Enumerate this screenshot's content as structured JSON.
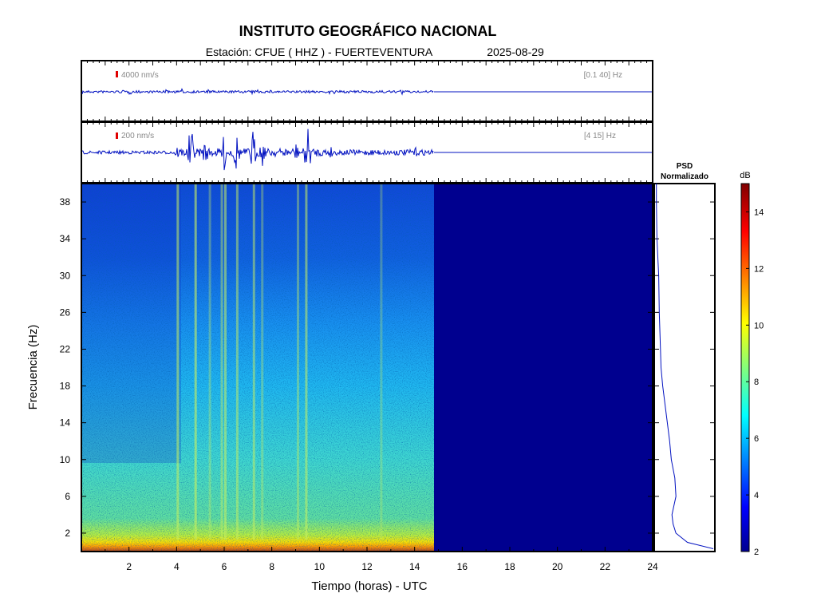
{
  "header": {
    "title": "INSTITUTO GEOGRÁFICO NACIONAL",
    "station": "Estación:  CFUE ( HHZ ) - FUERTEVENTURA",
    "date": "2025-08-29"
  },
  "traces": [
    {
      "scale_label": "4000 nm/s",
      "band_label": "[0.1 40] Hz"
    },
    {
      "scale_label": "200 nm/s",
      "band_label": "[4 15] Hz"
    }
  ],
  "psd": {
    "title_line1": "PSD",
    "title_line2": "Normalizado"
  },
  "colorbar": {
    "unit": "dB",
    "range": [
      2,
      15
    ],
    "ticks": [
      "2",
      "4",
      "6",
      "8",
      "10",
      "12",
      "14"
    ]
  },
  "chart_data": {
    "type": "heatmap",
    "title": "",
    "xlabel": "Tiempo (horas) - UTC",
    "ylabel": "Frecuencia  (Hz)",
    "xlim": [
      0,
      24
    ],
    "ylim": [
      0,
      40
    ],
    "x_ticks": [
      "2",
      "4",
      "6",
      "8",
      "10",
      "12",
      "14",
      "16",
      "18",
      "20",
      "22",
      "24"
    ],
    "y_ticks": [
      "2",
      "6",
      "10",
      "14",
      "18",
      "22",
      "26",
      "30",
      "34",
      "38"
    ],
    "data_end_hour": 14.8,
    "colormap": [
      "#00008f",
      "#0000ff",
      "#00ffff",
      "#ffff00",
      "#ff0000",
      "#800000"
    ],
    "grid": false,
    "psd_profile": {
      "frequency_hz": [
        0.3,
        1,
        2,
        3,
        4,
        6,
        8,
        10,
        12,
        14,
        16,
        18,
        20,
        22,
        26,
        30,
        34,
        38,
        40
      ],
      "normalized": [
        1.0,
        0.55,
        0.35,
        0.3,
        0.28,
        0.35,
        0.33,
        0.27,
        0.24,
        0.2,
        0.16,
        0.12,
        0.09,
        0.08,
        0.06,
        0.05,
        0.02,
        0.01,
        0.01
      ]
    }
  }
}
